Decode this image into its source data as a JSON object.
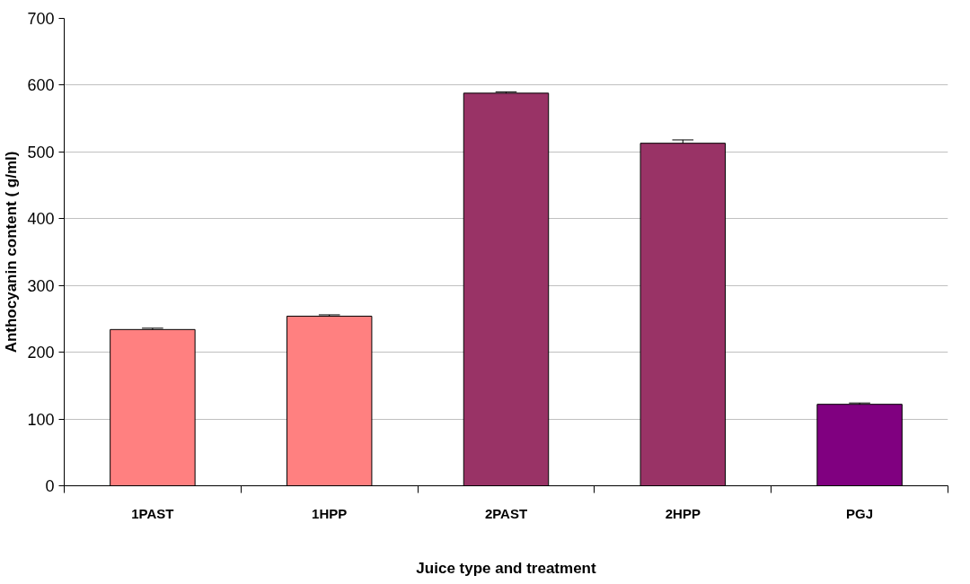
{
  "chart_data": {
    "type": "bar",
    "xlabel": "Juice type and treatment",
    "ylabel": "Anthocyanin content ( g/ml)",
    "categories": [
      "1PAST",
      "1HPP",
      "2PAST",
      "2HPP",
      "PGJ"
    ],
    "values": [
      234,
      254,
      588,
      513,
      122
    ],
    "errors": [
      2,
      2,
      2,
      5,
      2
    ],
    "colors": [
      "#ff8080",
      "#ff8080",
      "#993366",
      "#993366",
      "#800080"
    ],
    "ylim": [
      0,
      700
    ],
    "yticks": [
      0,
      100,
      200,
      300,
      400,
      500,
      600,
      700
    ],
    "grid": "y"
  }
}
